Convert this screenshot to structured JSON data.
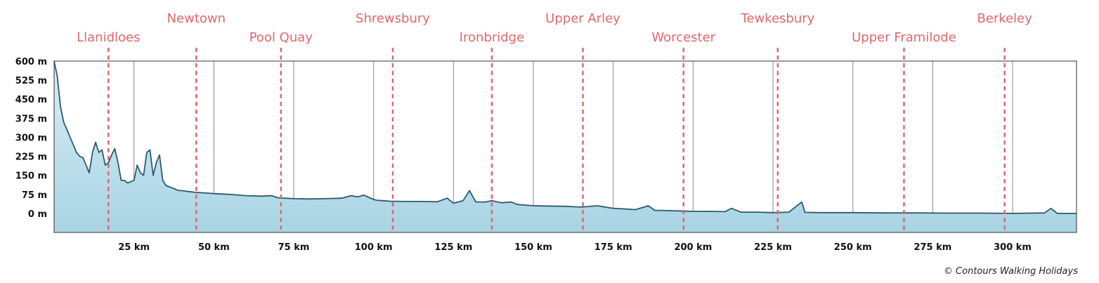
{
  "chart_data": {
    "type": "area",
    "title": "",
    "xlabel": "",
    "ylabel": "",
    "x_unit": "km",
    "y_unit": "m",
    "xlim": [
      0,
      320
    ],
    "ylim": [
      -75,
      600
    ],
    "x_ticks": [
      25,
      50,
      75,
      100,
      125,
      150,
      175,
      200,
      225,
      250,
      275,
      300
    ],
    "x_tick_labels": [
      "25 km",
      "50 km",
      "75 km",
      "100 km",
      "125 km",
      "150 km",
      "175 km",
      "200 km",
      "225 km",
      "250 km",
      "275 km",
      "300 km"
    ],
    "y_ticks": [
      600,
      525,
      450,
      375,
      300,
      225,
      150,
      75,
      0
    ],
    "y_tick_labels": [
      "600 m",
      "525 m",
      "450 m",
      "375 m",
      "300 m",
      "225 m",
      "150 m",
      "75 m",
      "0 m"
    ],
    "grid": "vertical",
    "series": [
      {
        "x": [
          0,
          1,
          2,
          3,
          4,
          5,
          6,
          7,
          8,
          9,
          10,
          11,
          12,
          13,
          14,
          15,
          16,
          17,
          18,
          19,
          20,
          21,
          22,
          23,
          24,
          25,
          26,
          27,
          28,
          29,
          30,
          31,
          32,
          33,
          34,
          35,
          36,
          37,
          38,
          39,
          40,
          41,
          42,
          43,
          44,
          45,
          48,
          50,
          55,
          60,
          65,
          68,
          70,
          72,
          75,
          80,
          85,
          90,
          93,
          95,
          97,
          100,
          101,
          103,
          105,
          110,
          115,
          120,
          123,
          125,
          128,
          130,
          132,
          135,
          137,
          140,
          143,
          145,
          150,
          160,
          165,
          170,
          175,
          178,
          182,
          186,
          188,
          190,
          195,
          200,
          205,
          210,
          212,
          215,
          220,
          225,
          230,
          234,
          235,
          240,
          250,
          260,
          270,
          280,
          290,
          300,
          310,
          312,
          314,
          320
        ],
        "y": [
          600,
          540,
          420,
          360,
          330,
          300,
          270,
          240,
          225,
          220,
          190,
          160,
          240,
          280,
          240,
          250,
          190,
          200,
          230,
          255,
          200,
          130,
          130,
          120,
          125,
          130,
          190,
          160,
          150,
          240,
          250,
          150,
          200,
          230,
          130,
          110,
          105,
          100,
          95,
          90,
          90,
          88,
          86,
          85,
          83,
          82,
          80,
          78,
          75,
          70,
          68,
          70,
          62,
          60,
          58,
          57,
          58,
          60,
          70,
          65,
          72,
          55,
          52,
          50,
          48,
          47,
          47,
          46,
          60,
          40,
          50,
          90,
          45,
          45,
          50,
          42,
          45,
          35,
          30,
          28,
          25,
          30,
          20,
          18,
          15,
          30,
          12,
          12,
          10,
          8,
          8,
          7,
          20,
          5,
          5,
          3,
          5,
          45,
          4,
          3,
          3,
          2,
          2,
          1,
          1,
          0,
          2,
          20,
          0,
          0
        ]
      }
    ],
    "waypoints": [
      {
        "name": "Llanidloes",
        "km": 17
      },
      {
        "name": "Newtown",
        "km": 44.5
      },
      {
        "name": "Pool Quay",
        "km": 71
      },
      {
        "name": "Shrewsbury",
        "km": 106
      },
      {
        "name": "Ironbridge",
        "km": 137
      },
      {
        "name": "Upper Arley",
        "km": 165.5
      },
      {
        "name": "Worcester",
        "km": 197
      },
      {
        "name": "Tewkesbury",
        "km": 226.5
      },
      {
        "name": "Upper Framilode",
        "km": 266
      },
      {
        "name": "Berkeley",
        "km": 297.5
      }
    ],
    "colors": {
      "line": "#2d5a6e",
      "fill_top": "#d8eef5",
      "fill_bottom": "#a9d4e4",
      "waypoint": "#e0686c",
      "grid": "#8a8a8a",
      "frame": "#333333"
    }
  },
  "credit": "© Contours Walking Holidays"
}
